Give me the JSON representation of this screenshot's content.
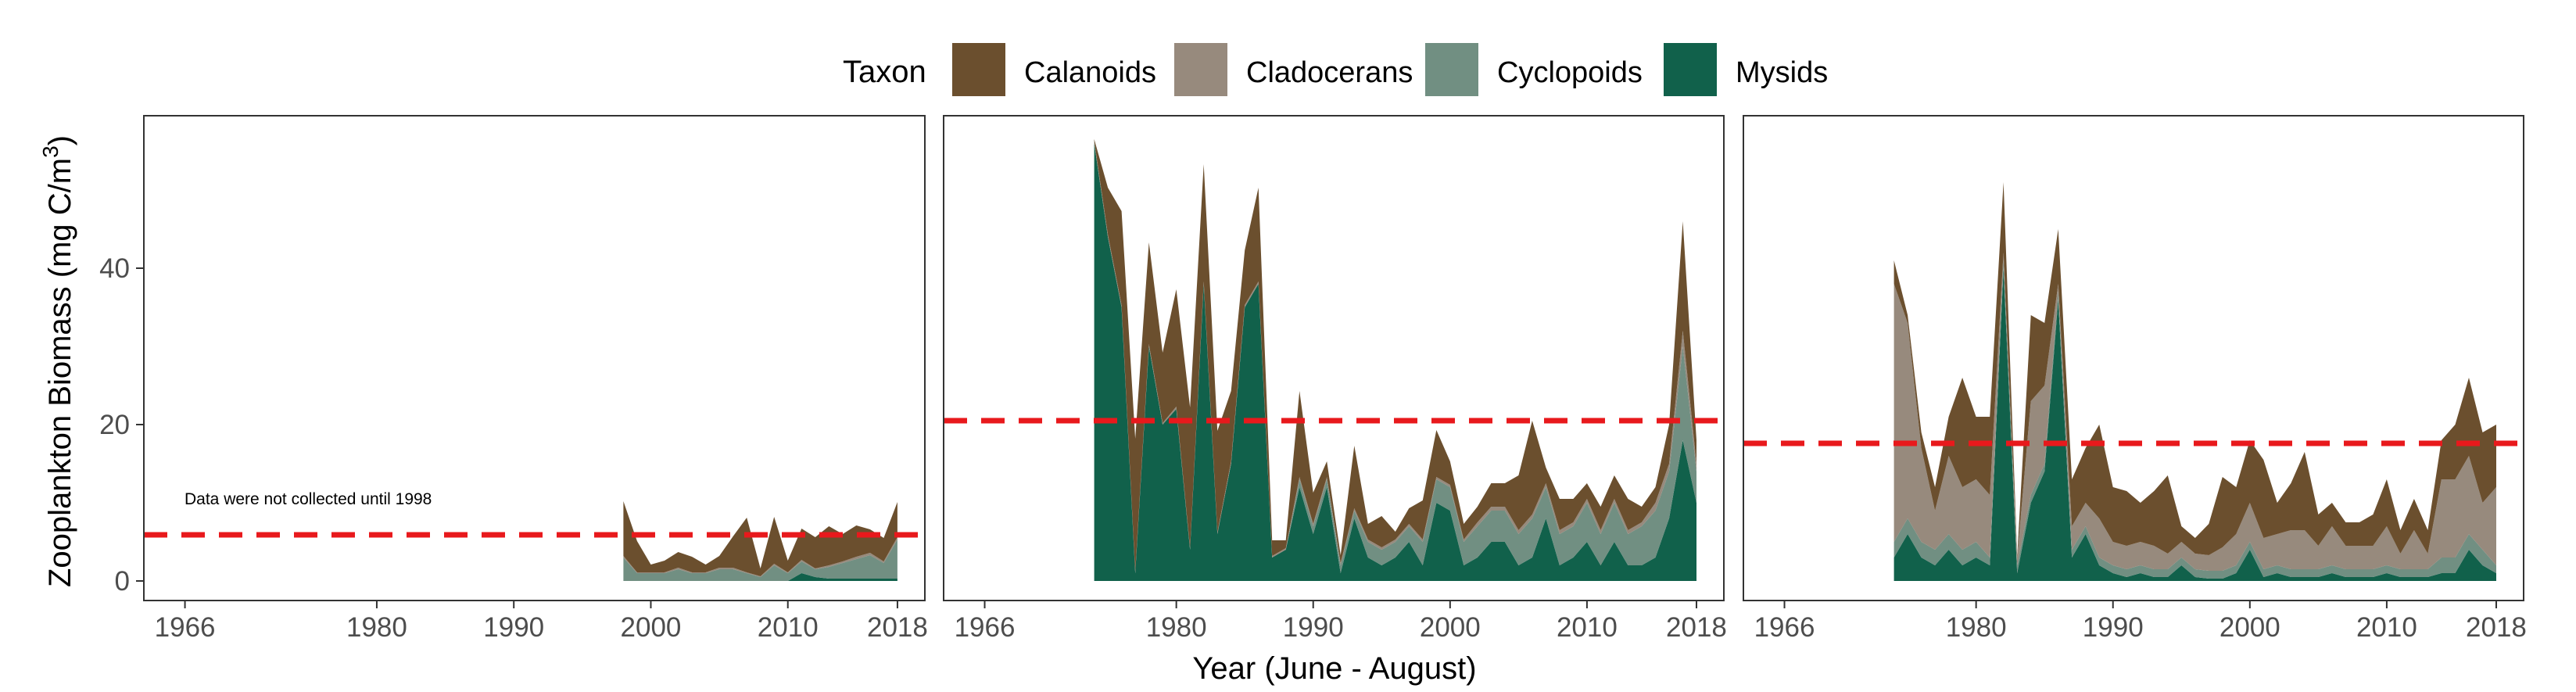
{
  "legend": {
    "title": "Taxon",
    "items": [
      {
        "label": "Calanoids",
        "color": "#6b4f2e"
      },
      {
        "label": "Cladocerans",
        "color": "#978a7d"
      },
      {
        "label": "Cyclopoids",
        "color": "#718f82"
      },
      {
        "label": "Mysids",
        "color": "#11614b"
      }
    ]
  },
  "axes": {
    "ylabel_main": "Zooplankton Biomass (mg C/m",
    "ylabel_sup": "3",
    "ylabel_close": ")",
    "xlabel": "Year (June - August)",
    "y_ticks": [
      0,
      20,
      40
    ],
    "x_ticks": [
      1966,
      1980,
      1990,
      2000,
      2010,
      2018
    ],
    "xlim": [
      1963,
      2020
    ],
    "ylim": [
      -2.5,
      59.5
    ]
  },
  "annotation": "Data were not collected until 1998",
  "reference_line_color": "#e8191c",
  "chart_data": [
    {
      "type": "area",
      "stacked": true,
      "stack_order": [
        "Mysids",
        "Cyclopoids",
        "Cladocerans",
        "Calanoids"
      ],
      "reference_line": 5.9,
      "x": [
        1998,
        1999,
        2000,
        2001,
        2002,
        2003,
        2004,
        2005,
        2006,
        2007,
        2008,
        2009,
        2010,
        2011,
        2012,
        2013,
        2014,
        2015,
        2016,
        2017,
        2018
      ],
      "series": [
        {
          "name": "Mysids",
          "values": [
            0,
            0,
            0,
            0,
            0,
            0,
            0,
            0,
            0,
            0,
            0,
            0,
            0,
            1,
            0.5,
            0.3,
            0.3,
            0.3,
            0.3,
            0.3,
            0.3
          ]
        },
        {
          "name": "Cyclopoids",
          "values": [
            3,
            1,
            1,
            1,
            1.5,
            1,
            1,
            1.5,
            1.5,
            1,
            0.5,
            2,
            1,
            1.5,
            1,
            1.5,
            2,
            2.5,
            3,
            2,
            5
          ]
        },
        {
          "name": "Cladocerans",
          "values": [
            0.2,
            0.1,
            0.1,
            0.1,
            0.2,
            0.1,
            0.1,
            0.2,
            0.2,
            0.1,
            0.1,
            0.2,
            0.1,
            0.2,
            0.1,
            0.2,
            0.2,
            0.3,
            0.3,
            0.2,
            0.3
          ]
        },
        {
          "name": "Calanoids",
          "values": [
            7,
            4,
            1,
            1.5,
            2,
            2,
            1,
            1.5,
            4,
            7,
            1,
            6,
            1.5,
            4,
            4,
            5,
            3.5,
            4,
            3,
            3,
            4.5
          ]
        }
      ]
    },
    {
      "type": "area",
      "stacked": true,
      "stack_order": [
        "Mysids",
        "Cyclopoids",
        "Cladocerans",
        "Calanoids"
      ],
      "reference_line": 20.5,
      "x": [
        1974,
        1975,
        1976,
        1977,
        1978,
        1979,
        1980,
        1981,
        1982,
        1983,
        1984,
        1985,
        1986,
        1987,
        1988,
        1989,
        1990,
        1991,
        1992,
        1993,
        1994,
        1995,
        1996,
        1997,
        1998,
        1999,
        2000,
        2001,
        2002,
        2003,
        2004,
        2005,
        2006,
        2007,
        2008,
        2009,
        2010,
        2011,
        2012,
        2013,
        2014,
        2015,
        2016,
        2017,
        2018
      ],
      "series": [
        {
          "name": "Mysids",
          "values": [
            56,
            44,
            35,
            1,
            30,
            20,
            22,
            4,
            38,
            6,
            15,
            35,
            38,
            3,
            4,
            12,
            6,
            12,
            1,
            8,
            3,
            2,
            3,
            5,
            2,
            10,
            9,
            2,
            3,
            5,
            5,
            2,
            3,
            8,
            2,
            3,
            5,
            2,
            5,
            2,
            2,
            3,
            8,
            18,
            10
          ]
        },
        {
          "name": "Cyclopoids",
          "values": [
            0,
            0,
            0,
            0,
            0,
            0,
            0,
            0,
            0,
            0,
            0,
            0,
            0,
            0,
            0,
            1,
            1,
            1,
            1,
            1,
            2,
            2,
            2,
            2,
            3,
            3,
            3,
            3,
            4,
            4,
            4,
            4,
            5,
            4,
            4,
            4,
            5,
            4,
            5,
            4,
            5,
            6,
            6,
            12,
            4
          ]
        },
        {
          "name": "Cladocerans",
          "values": [
            0.3,
            0.3,
            0.3,
            0.2,
            0.3,
            0.2,
            0.3,
            0.2,
            0.3,
            0.2,
            0.3,
            0.3,
            0.3,
            0.2,
            0.2,
            0.3,
            0.3,
            0.3,
            0.3,
            0.3,
            0.3,
            0.3,
            0.3,
            0.3,
            0.3,
            0.3,
            0.3,
            0.3,
            0.5,
            0.5,
            0.5,
            0.5,
            0.5,
            0.5,
            0.5,
            0.5,
            0.5,
            0.5,
            0.5,
            0.5,
            0.5,
            1,
            1,
            2,
            1
          ]
        },
        {
          "name": "Calanoids",
          "values": [
            0.2,
            6,
            12,
            17,
            13,
            9,
            15,
            18,
            15,
            13,
            9,
            7,
            12,
            2,
            1,
            11,
            4,
            2,
            1,
            8,
            2,
            4,
            1,
            2,
            5,
            6,
            3,
            2,
            2,
            3,
            3,
            7,
            12,
            2,
            4,
            3,
            2,
            3,
            3,
            4,
            2,
            2,
            5,
            14,
            3
          ]
        }
      ]
    },
    {
      "type": "area",
      "stacked": true,
      "stack_order": [
        "Mysids",
        "Cyclopoids",
        "Cladocerans",
        "Calanoids"
      ],
      "reference_line": 17.6,
      "x": [
        1974,
        1975,
        1976,
        1977,
        1978,
        1979,
        1980,
        1981,
        1982,
        1983,
        1984,
        1985,
        1986,
        1987,
        1988,
        1989,
        1990,
        1991,
        1992,
        1993,
        1994,
        1995,
        1996,
        1997,
        1998,
        1999,
        2000,
        2001,
        2002,
        2003,
        2004,
        2005,
        2006,
        2007,
        2008,
        2009,
        2010,
        2011,
        2012,
        2013,
        2014,
        2015,
        2016,
        2017,
        2018
      ],
      "series": [
        {
          "name": "Mysids",
          "values": [
            3,
            6,
            3,
            2,
            4,
            2,
            3,
            2,
            40,
            1,
            10,
            14,
            36,
            3,
            6,
            2,
            1,
            0.5,
            1,
            0.5,
            0.5,
            2,
            0.5,
            0.3,
            0.3,
            1,
            4,
            0.5,
            1,
            0.5,
            0.5,
            0.5,
            1,
            0.5,
            0.5,
            0.5,
            1,
            0.5,
            0.5,
            0.5,
            1,
            1,
            4,
            2,
            1
          ]
        },
        {
          "name": "Cyclopoids",
          "values": [
            2,
            2,
            2,
            2,
            2,
            2,
            2,
            1,
            1,
            1,
            1,
            1,
            1,
            1,
            1,
            1,
            1,
            1,
            1,
            1,
            1,
            1,
            1,
            1,
            1,
            1,
            1,
            1,
            1,
            1,
            1,
            1,
            1,
            1,
            1,
            1,
            1,
            1,
            1,
            1,
            2,
            2,
            2,
            2,
            1
          ]
        },
        {
          "name": "Cladocerans",
          "values": [
            33,
            25,
            12,
            5,
            10,
            8,
            8,
            8,
            1,
            1,
            12,
            10,
            1,
            3,
            3,
            5,
            3,
            3,
            3,
            3,
            2,
            2,
            2,
            2,
            3,
            4,
            5,
            4,
            4,
            5,
            5,
            3,
            5,
            3,
            3,
            3,
            5,
            2,
            5,
            2,
            10,
            10,
            10,
            6,
            10
          ]
        },
        {
          "name": "Calanoids",
          "values": [
            3,
            1,
            2,
            3,
            5,
            14,
            8,
            10,
            9,
            0.2,
            11,
            8,
            7,
            6,
            7,
            12,
            7,
            7,
            5,
            7,
            10,
            2,
            2,
            4,
            9,
            6,
            8,
            10,
            4,
            6,
            10,
            4,
            3,
            3,
            3,
            4,
            6,
            3,
            4,
            3,
            5,
            7,
            10,
            9,
            8
          ]
        }
      ]
    }
  ]
}
